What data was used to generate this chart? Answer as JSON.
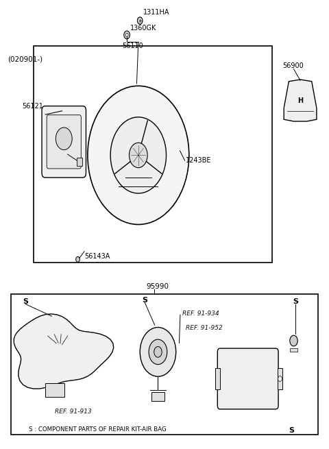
{
  "bg_color": "#ffffff",
  "line_color": "#000000",
  "light_line_color": "#888888",
  "label_color": "#000000",
  "fig_width": 4.8,
  "fig_height": 6.55,
  "dpi": 100,
  "top_section": {
    "label_020901": "(020901-)",
    "part_1311HA": "1311HA",
    "part_1360GK": "1360GK",
    "part_56110": "56110",
    "part_56121": "56121",
    "part_1243BE": "1243BE",
    "part_56143A": "56143A",
    "part_56900": "56900"
  },
  "bottom_section": {
    "part_95990": "95990",
    "ref_91913": "REF. 91-913",
    "ref_91934": "REF. 91-934",
    "ref_91952": "REF. 91-952",
    "s_label": "S : COMPONENT PARTS OF REPAIR KIT-AIR BAG",
    "s_right": "S"
  }
}
